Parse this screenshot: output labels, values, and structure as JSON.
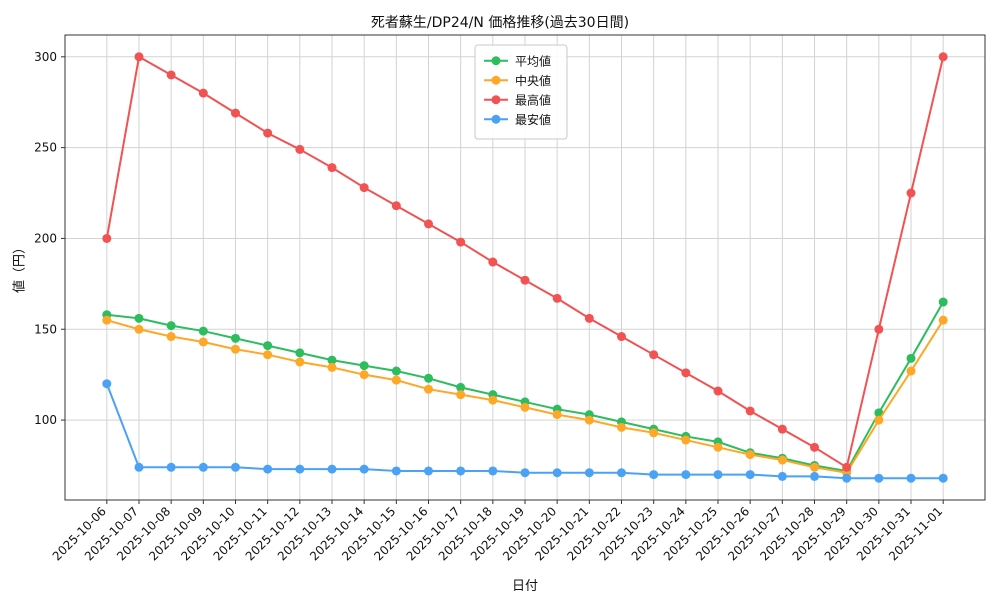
{
  "chart_data": {
    "type": "line",
    "title": "死者蘇生/DP24/N 価格推移(過去30日間)",
    "xlabel": "日付",
    "ylabel": "値（円）",
    "ylim": [
      56,
      312
    ],
    "yticks": [
      100,
      150,
      200,
      250,
      300
    ],
    "grid": true,
    "legend_position": "top-center",
    "categories": [
      "2025-10-06",
      "2025-10-07",
      "2025-10-08",
      "2025-10-09",
      "2025-10-10",
      "2025-10-11",
      "2025-10-12",
      "2025-10-13",
      "2025-10-14",
      "2025-10-15",
      "2025-10-16",
      "2025-10-17",
      "2025-10-18",
      "2025-10-19",
      "2025-10-20",
      "2025-10-21",
      "2025-10-22",
      "2025-10-23",
      "2025-10-24",
      "2025-10-25",
      "2025-10-26",
      "2025-10-27",
      "2025-10-28",
      "2025-10-29",
      "2025-10-30",
      "2025-10-31",
      "2025-11-01"
    ],
    "series": [
      {
        "key": "average",
        "name": "平均値",
        "color": "#2dbd5f",
        "values": [
          158,
          156,
          152,
          149,
          145,
          141,
          137,
          133,
          130,
          127,
          123,
          118,
          114,
          110,
          106,
          103,
          99,
          95,
          91,
          88,
          82,
          79,
          75,
          72,
          104,
          134,
          165
        ]
      },
      {
        "key": "median",
        "name": "中央値",
        "color": "#ffa726",
        "values": [
          155,
          150,
          146,
          143,
          139,
          136,
          132,
          129,
          125,
          122,
          117,
          114,
          111,
          107,
          103,
          100,
          96,
          93,
          89,
          85,
          81,
          78,
          74,
          71,
          100,
          127,
          155
        ]
      },
      {
        "key": "max",
        "name": "最高値",
        "color": "#f25252",
        "values": [
          200,
          300,
          290,
          280,
          269,
          258,
          249,
          239,
          228,
          218,
          208,
          198,
          187,
          177,
          167,
          156,
          146,
          136,
          126,
          116,
          105,
          95,
          85,
          74,
          150,
          225,
          300
        ]
      },
      {
        "key": "min",
        "name": "最安値",
        "color": "#49a2f5",
        "values": [
          120,
          74,
          74,
          74,
          74,
          73,
          73,
          73,
          73,
          72,
          72,
          72,
          72,
          71,
          71,
          71,
          71,
          70,
          70,
          70,
          70,
          69,
          69,
          68,
          68,
          68,
          68
        ]
      }
    ]
  }
}
